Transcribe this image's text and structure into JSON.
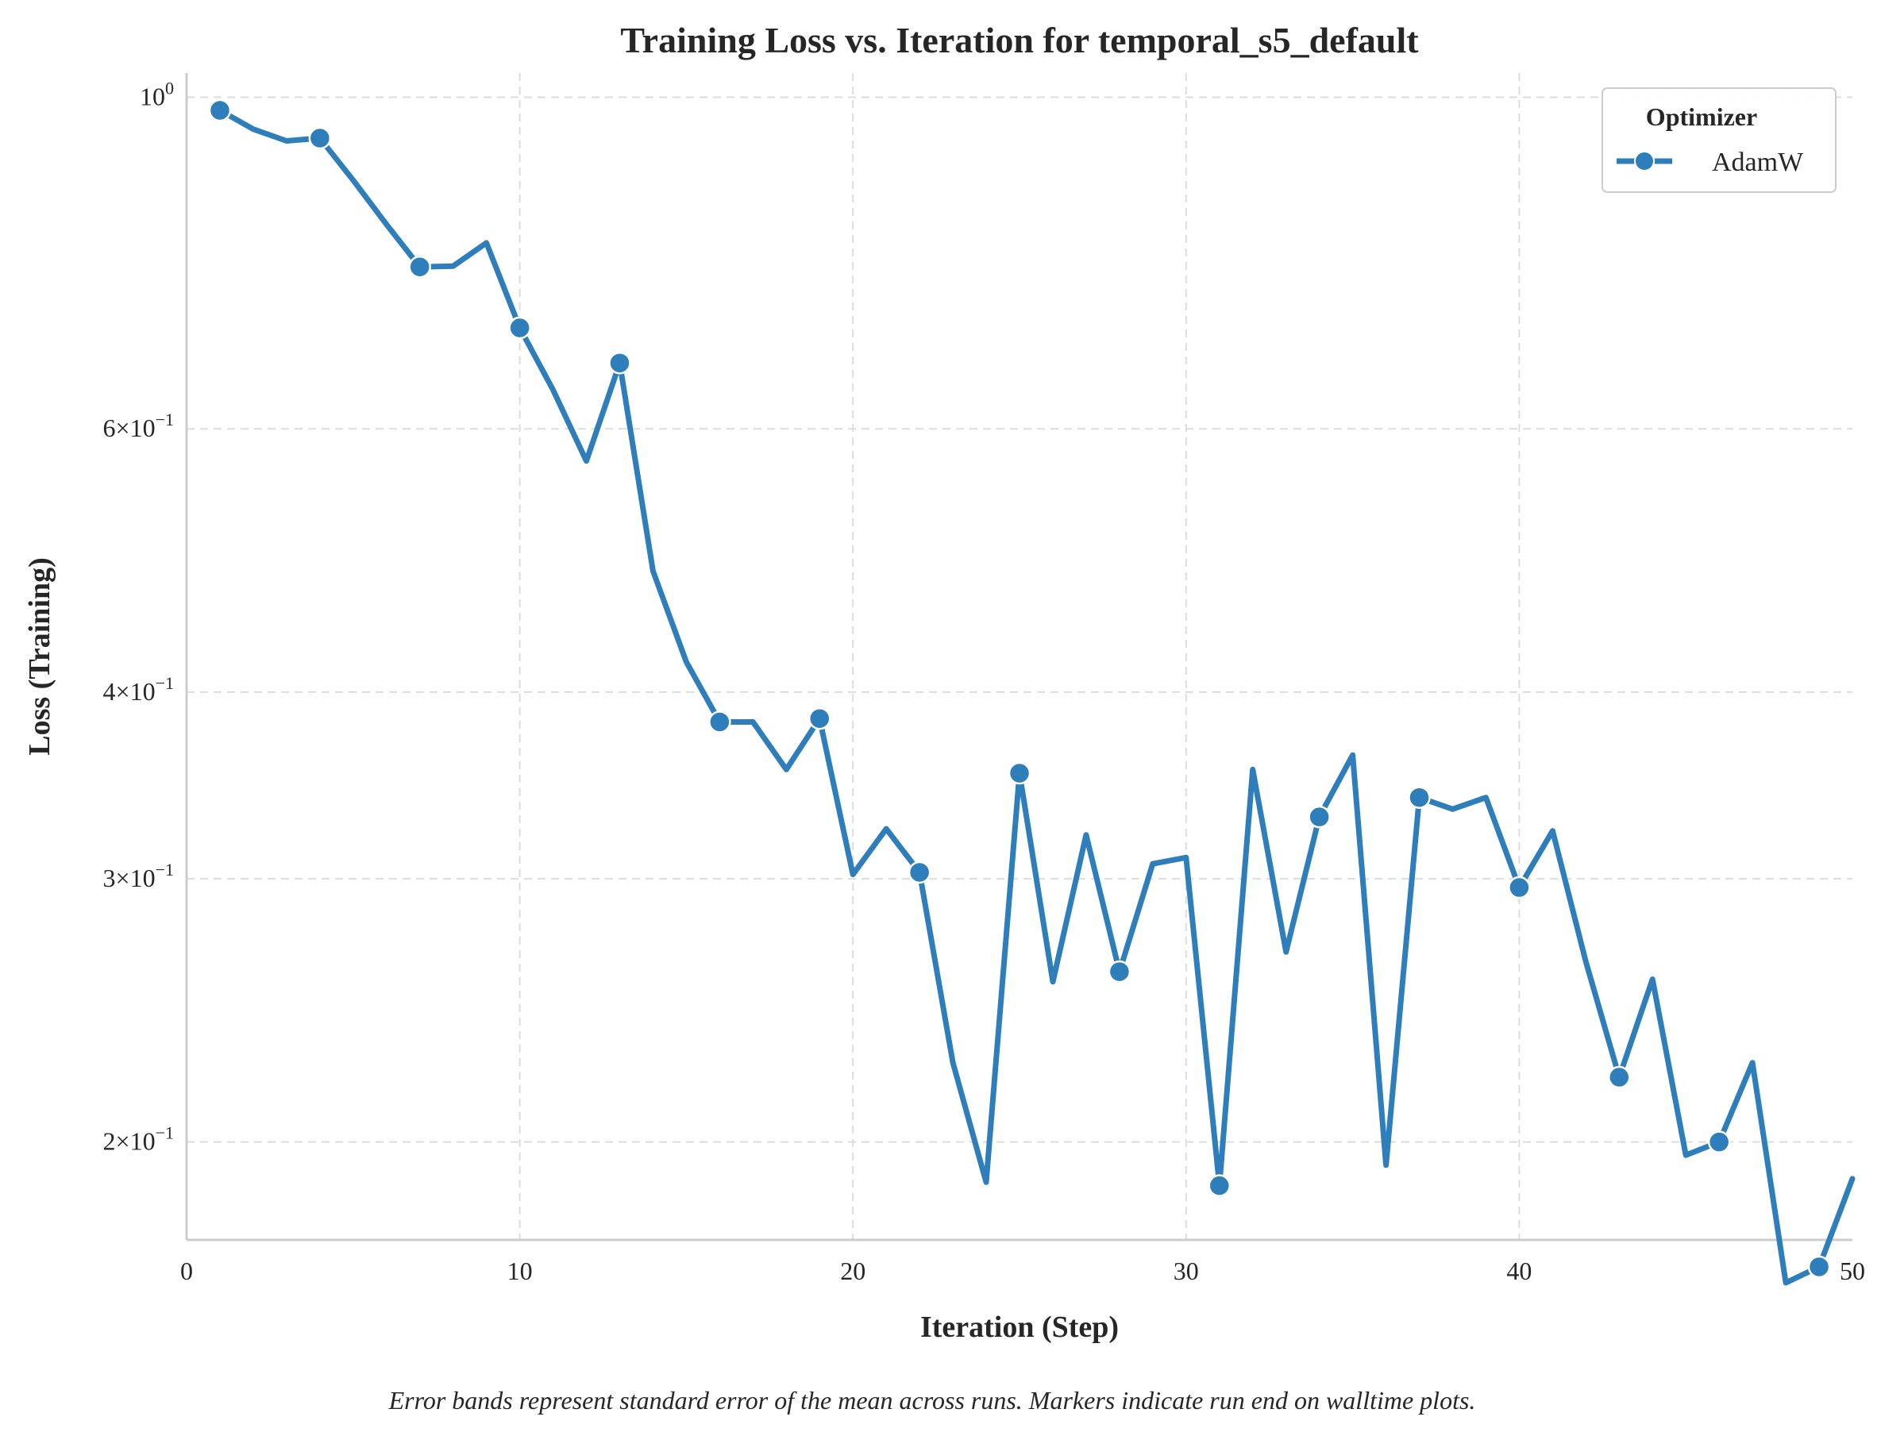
{
  "chart_data": {
    "type": "line",
    "title": "Training Loss vs. Iteration for temporal_s5_default",
    "xlabel": "Iteration (Step)",
    "ylabel": "Loss (Training)",
    "yscale": "log",
    "xlim": [
      0,
      50
    ],
    "ylim": [
      0.172,
      1.038
    ],
    "grid": "vertical and horizontal, dashed",
    "x_ticks": [
      0,
      10,
      20,
      30,
      40,
      50
    ],
    "x_tick_labels": [
      "0",
      "10",
      "20",
      "30",
      "40",
      "50"
    ],
    "y_ticks": [
      1.0,
      0.6,
      0.4,
      0.3,
      0.2
    ],
    "y_tick_labels": [
      {
        "base": "10",
        "exp": "0"
      },
      {
        "mant": "6",
        "base": "10",
        "exp": "−1"
      },
      {
        "mant": "4",
        "base": "10",
        "exp": "−1"
      },
      {
        "mant": "3",
        "base": "10",
        "exp": "−1"
      },
      {
        "mant": "2",
        "base": "10",
        "exp": "−1"
      }
    ],
    "legend": {
      "title": "Optimizer",
      "placement": "top-right",
      "entries": [
        "AdamW"
      ]
    },
    "series": [
      {
        "name": "AdamW",
        "color": "#2e7ebc",
        "x": [
          1,
          2,
          3,
          4,
          5,
          6,
          7,
          8,
          9,
          10,
          11,
          12,
          13,
          14,
          15,
          16,
          17,
          18,
          19,
          20,
          21,
          22,
          23,
          24,
          25,
          26,
          27,
          28,
          29,
          30,
          31,
          32,
          33,
          34,
          35,
          36,
          37,
          38,
          39,
          40,
          41,
          42,
          43,
          44,
          45,
          46,
          47,
          48,
          49,
          50
        ],
        "values": [
          0.98,
          0.952,
          0.935,
          0.939,
          0.88,
          0.822,
          0.77,
          0.771,
          0.799,
          0.701,
          0.637,
          0.571,
          0.664,
          0.482,
          0.419,
          0.382,
          0.382,
          0.355,
          0.384,
          0.302,
          0.324,
          0.303,
          0.226,
          0.188,
          0.353,
          0.256,
          0.321,
          0.26,
          0.307,
          0.31,
          0.187,
          0.355,
          0.268,
          0.33,
          0.363,
          0.193,
          0.34,
          0.334,
          0.34,
          0.296,
          0.323,
          0.264,
          0.221,
          0.257,
          0.196,
          0.2,
          0.226,
          0.161,
          0.165,
          0.189
        ],
        "marker_x": [
          1,
          4,
          7,
          10,
          13,
          16,
          19,
          22,
          25,
          28,
          31,
          34,
          37,
          40,
          43,
          46,
          49
        ]
      }
    ],
    "caption": "Error bands represent standard error of the mean across runs. Markers indicate run end on walltime plots."
  }
}
